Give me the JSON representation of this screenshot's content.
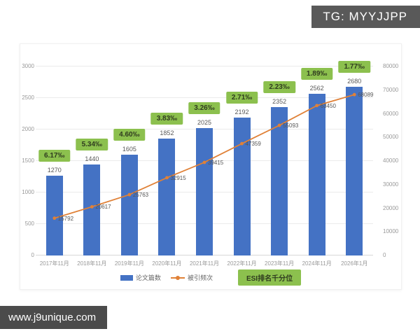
{
  "overlay": {
    "tg_badge": "TG: MYYJJPP",
    "url_bar": "www.j9unique.com"
  },
  "chart_data": {
    "type": "bar",
    "subtype": "bar+line combo with per-point badge labels",
    "categories": [
      "2017年11月",
      "2018年11月",
      "2019年11月",
      "2020年11月",
      "2021年11月",
      "2022年11月",
      "2023年11月",
      "2024年11月",
      "2026年1月"
    ],
    "series": [
      {
        "name": "论文篇数",
        "type": "bar",
        "axis": "left",
        "color": "#4472c4",
        "values": [
          1270,
          1440,
          1605,
          1852,
          2025,
          2192,
          2352,
          2562,
          2680
        ]
      },
      {
        "name": "被引频次",
        "type": "line",
        "axis": "right",
        "color": "#e08137",
        "values": [
          15792,
          20617,
          25763,
          32915,
          39415,
          47359,
          55093,
          63450,
          68089
        ]
      },
      {
        "name": "ESI排名千分位",
        "type": "point-labels",
        "color": "#8cc04e",
        "values": [
          "6.17‰",
          "5.34‰",
          "4.60‰",
          "3.83‰",
          "3.26‰",
          "2.71‰",
          "2.23‰",
          "1.89‰",
          "1.77‰"
        ]
      }
    ],
    "left_axis": {
      "min": 0,
      "max": 3000,
      "step": 500,
      "ticks": [
        0,
        500,
        1000,
        1500,
        2000,
        2500,
        3000
      ]
    },
    "right_axis": {
      "min": 0,
      "max": 80000,
      "step": 10000,
      "ticks": [
        0,
        10000,
        20000,
        30000,
        40000,
        50000,
        60000,
        70000,
        80000
      ]
    },
    "title": "",
    "xlabel": "",
    "ylabel": "",
    "grid": true,
    "legend_position": "bottom"
  }
}
